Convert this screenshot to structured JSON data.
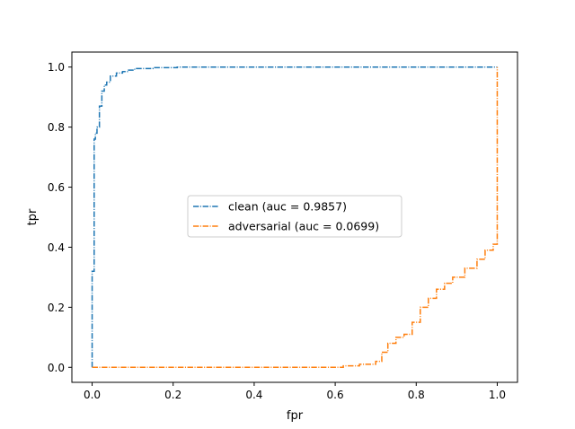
{
  "chart_data": {
    "type": "line",
    "xlabel": "fpr",
    "ylabel": "tpr",
    "xlim": [
      -0.05,
      1.05
    ],
    "ylim": [
      -0.05,
      1.05
    ],
    "xticks": [
      0.0,
      0.2,
      0.4,
      0.6,
      0.8,
      1.0
    ],
    "yticks": [
      0.0,
      0.2,
      0.4,
      0.6,
      0.8,
      1.0
    ],
    "tick_labels": [
      "0.0",
      "0.2",
      "0.4",
      "0.6",
      "0.8",
      "1.0"
    ],
    "grid": false,
    "legend_position": "center",
    "series": [
      {
        "name": "clean (auc = 0.9857)",
        "color": "#1f77b4",
        "linestyle": "dashdot",
        "x": [
          0.0,
          0.0,
          0.005,
          0.005,
          0.008,
          0.008,
          0.012,
          0.012,
          0.018,
          0.018,
          0.024,
          0.024,
          0.03,
          0.03,
          0.036,
          0.036,
          0.045,
          0.045,
          0.06,
          0.06,
          0.075,
          0.075,
          0.09,
          0.09,
          0.105,
          0.105,
          0.15,
          0.15,
          0.21,
          0.21,
          1.0,
          1.0
        ],
        "y": [
          0.0,
          0.32,
          0.32,
          0.76,
          0.76,
          0.78,
          0.78,
          0.8,
          0.8,
          0.87,
          0.87,
          0.92,
          0.92,
          0.94,
          0.94,
          0.95,
          0.95,
          0.97,
          0.97,
          0.98,
          0.98,
          0.985,
          0.985,
          0.99,
          0.99,
          0.995,
          0.995,
          0.998,
          0.998,
          1.0,
          1.0,
          1.0
        ]
      },
      {
        "name": "adversarial (auc = 0.0699)",
        "color": "#ff7f0e",
        "linestyle": "dashdot",
        "x": [
          0.0,
          0.62,
          0.62,
          0.66,
          0.66,
          0.7,
          0.7,
          0.715,
          0.715,
          0.73,
          0.73,
          0.75,
          0.75,
          0.77,
          0.77,
          0.79,
          0.79,
          0.81,
          0.81,
          0.83,
          0.83,
          0.85,
          0.85,
          0.87,
          0.87,
          0.89,
          0.89,
          0.92,
          0.92,
          0.95,
          0.95,
          0.97,
          0.97,
          0.99,
          0.99,
          1.0,
          1.0,
          1.0
        ],
        "y": [
          0.0,
          0.0,
          0.005,
          0.005,
          0.01,
          0.01,
          0.02,
          0.02,
          0.05,
          0.05,
          0.08,
          0.08,
          0.1,
          0.1,
          0.11,
          0.11,
          0.15,
          0.15,
          0.2,
          0.2,
          0.23,
          0.23,
          0.26,
          0.26,
          0.28,
          0.28,
          0.3,
          0.3,
          0.33,
          0.33,
          0.36,
          0.36,
          0.39,
          0.39,
          0.41,
          0.41,
          0.42,
          1.0
        ]
      }
    ]
  }
}
